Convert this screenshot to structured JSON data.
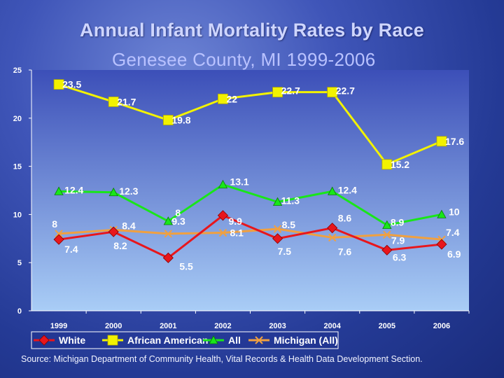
{
  "title": "Annual Infant Mortality Rates by Race",
  "subtitle": "Genesee County, MI  1999-2006",
  "source": "Source: Michigan Department of Community Health, Vital Records & Health Data Development Section.",
  "chart_data": {
    "type": "line",
    "title": "Annual Infant Mortality Rates by Race",
    "subtitle": "Genesee County, MI  1999-2006",
    "categories": [
      "1999",
      "2000",
      "2001",
      "2002",
      "2003",
      "2004",
      "2005",
      "2006"
    ],
    "ylim": [
      0,
      25
    ],
    "yticks": [
      0,
      5,
      10,
      15,
      20,
      25
    ],
    "grid": false,
    "legend_position": "bottom",
    "series": [
      {
        "name": "White",
        "color": "#e8161c",
        "marker": "diamond",
        "values": [
          7.4,
          8.2,
          5.5,
          9.9,
          7.5,
          8.6,
          6.3,
          6.9
        ],
        "labels": [
          "7.4",
          "8.2",
          "5.5",
          "9.9",
          "7.5",
          "8.6",
          "6.3",
          "6.9"
        ]
      },
      {
        "name": "African American",
        "color": "#f2f200",
        "marker": "square",
        "values": [
          23.5,
          21.7,
          19.8,
          22,
          22.7,
          22.7,
          15.2,
          17.6
        ],
        "labels": [
          "23.5",
          "21.7",
          "19.8",
          "22",
          "22.7",
          "22.7",
          "15.2",
          "17.6"
        ]
      },
      {
        "name": "All",
        "color": "#19e619",
        "marker": "triangle",
        "values": [
          12.4,
          12.3,
          9.3,
          13.1,
          11.3,
          12.4,
          8.9,
          10
        ],
        "labels": [
          "12.4",
          "12.3",
          "9.3",
          "13.1",
          "11.3",
          "12.4",
          "8.9",
          "10"
        ]
      },
      {
        "name": "Michigan (All)",
        "color": "#f0a040",
        "marker": "x",
        "values": [
          8,
          8.4,
          8,
          8.1,
          8.5,
          7.6,
          7.9,
          7.4
        ],
        "labels": [
          "8",
          "8.4",
          "8",
          "8.1",
          "8.5",
          "7.6",
          "7.9",
          "7.4"
        ]
      }
    ]
  }
}
